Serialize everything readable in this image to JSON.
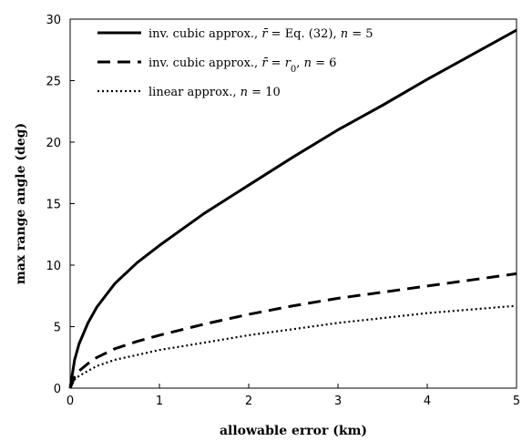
{
  "chart_data": {
    "type": "line",
    "title": "",
    "xlabel": "allowable error (km)",
    "ylabel": "max range angle (deg)",
    "xlim": [
      0,
      5
    ],
    "ylim": [
      0,
      30
    ],
    "xticks": [
      0,
      1,
      2,
      3,
      4,
      5
    ],
    "yticks": [
      0,
      5,
      10,
      15,
      20,
      25,
      30
    ],
    "grid": false,
    "legend_position": "top-left",
    "series": [
      {
        "name": "inv. cubic approx., r̄ = Eq. (32), n = 5",
        "style": "solid",
        "color": "#000000",
        "x": [
          0,
          0.05,
          0.1,
          0.2,
          0.3,
          0.5,
          0.75,
          1,
          1.5,
          2,
          2.5,
          3,
          3.5,
          4,
          4.5,
          5
        ],
        "y": [
          0,
          2.3,
          3.6,
          5.3,
          6.6,
          8.5,
          10.2,
          11.6,
          14.2,
          16.5,
          18.8,
          21.0,
          23.0,
          25.1,
          27.1,
          29.1
        ]
      },
      {
        "name": "inv. cubic approx., r̄ = r0, n = 6",
        "style": "dashed",
        "color": "#000000",
        "x": [
          0,
          0.05,
          0.1,
          0.2,
          0.3,
          0.5,
          0.75,
          1,
          1.5,
          2,
          2.5,
          3,
          3.5,
          4,
          4.5,
          5
        ],
        "y": [
          0,
          0.9,
          1.4,
          2.0,
          2.5,
          3.2,
          3.8,
          4.3,
          5.2,
          6.0,
          6.7,
          7.3,
          7.8,
          8.3,
          8.8,
          9.3
        ]
      },
      {
        "name": "linear approx., n = 10",
        "style": "dotted",
        "color": "#000000",
        "x": [
          0,
          0.05,
          0.1,
          0.2,
          0.3,
          0.5,
          0.75,
          1,
          1.5,
          2,
          2.5,
          3,
          3.5,
          4,
          4.5,
          5
        ],
        "y": [
          0,
          0.7,
          1.0,
          1.4,
          1.8,
          2.3,
          2.7,
          3.1,
          3.7,
          4.3,
          4.8,
          5.3,
          5.7,
          6.1,
          6.4,
          6.7
        ]
      }
    ]
  },
  "legend": {
    "entries": [
      {
        "prefix": "inv. cubic approx., ",
        "rbar": "r̄",
        "mid": " = Eq. (32), ",
        "nvar": "n",
        "tail": " = 5"
      },
      {
        "prefix": "inv. cubic approx., ",
        "rbar": "r̄",
        "mid": " = ",
        "rvar": "r",
        "sub": "0",
        "mid2": ", ",
        "nvar": "n",
        "tail": " = 6"
      },
      {
        "prefix": "linear approx., ",
        "nvar": "n",
        "tail": " = 10"
      }
    ]
  }
}
